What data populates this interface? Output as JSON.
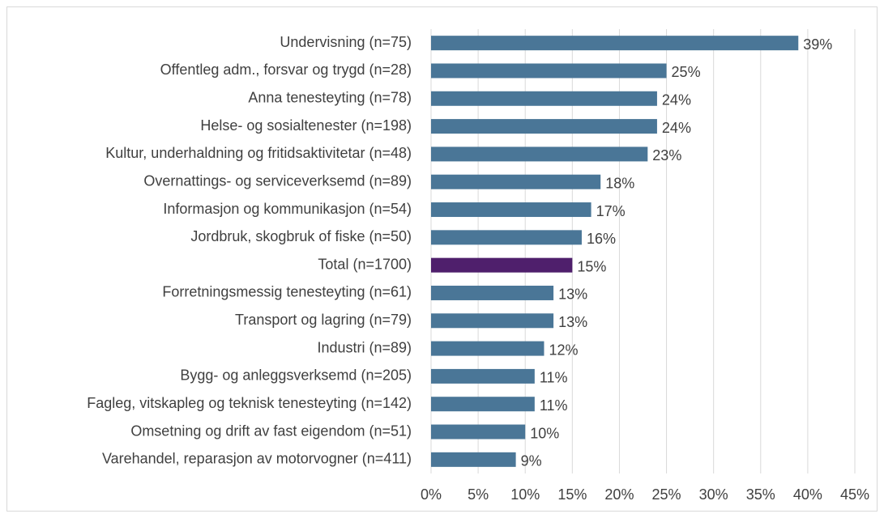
{
  "chart_data": {
    "type": "barh",
    "categories": [
      "Undervisning (n=75)",
      "Offentleg adm., forsvar og trygd (n=28)",
      "Anna tenesteyting (n=78)",
      "Helse- og sosialtenester (n=198)",
      "Kultur, underhaldning og fritidsaktivitetar (n=48)",
      "Overnattings- og serviceverksemd (n=89)",
      "Informasjon og kommunikasjon (n=54)",
      "Jordbruk, skogbruk of fiske (n=50)",
      "Total (n=1700)",
      "Forretningsmessig tenesteyting (n=61)",
      "Transport og lagring (n=79)",
      "Industri (n=89)",
      "Bygg- og anleggsverksemd (n=205)",
      "Fagleg, vitskapleg og teknisk tenesteyting (n=142)",
      "Omsetning og drift av fast eigendom (n=51)",
      "Varehandel, reparasjon av motorvogner (n=411)"
    ],
    "values": [
      39,
      25,
      24,
      24,
      23,
      18,
      17,
      16,
      15,
      13,
      13,
      12,
      11,
      11,
      10,
      9
    ],
    "value_labels": [
      "39%",
      "25%",
      "24%",
      "24%",
      "23%",
      "18%",
      "17%",
      "16%",
      "15%",
      "13%",
      "13%",
      "12%",
      "11%",
      "11%",
      "10%",
      "9%"
    ],
    "colors": [
      "#4a7697",
      "#4a7697",
      "#4a7697",
      "#4a7697",
      "#4a7697",
      "#4a7697",
      "#4a7697",
      "#4a7697",
      "#4f1f6c",
      "#4a7697",
      "#4a7697",
      "#4a7697",
      "#4a7697",
      "#4a7697",
      "#4a7697",
      "#4a7697"
    ],
    "xlim": [
      0,
      45
    ],
    "xticks": [
      {
        "value": 0,
        "label": "0%"
      },
      {
        "value": 5,
        "label": "5%"
      },
      {
        "value": 10,
        "label": "10%"
      },
      {
        "value": 15,
        "label": "15%"
      },
      {
        "value": 20,
        "label": "20%"
      },
      {
        "value": 25,
        "label": "25%"
      },
      {
        "value": 30,
        "label": "30%"
      },
      {
        "value": 35,
        "label": "35%"
      },
      {
        "value": 40,
        "label": "40%"
      },
      {
        "value": 45,
        "label": "45%"
      }
    ],
    "grid": true
  }
}
